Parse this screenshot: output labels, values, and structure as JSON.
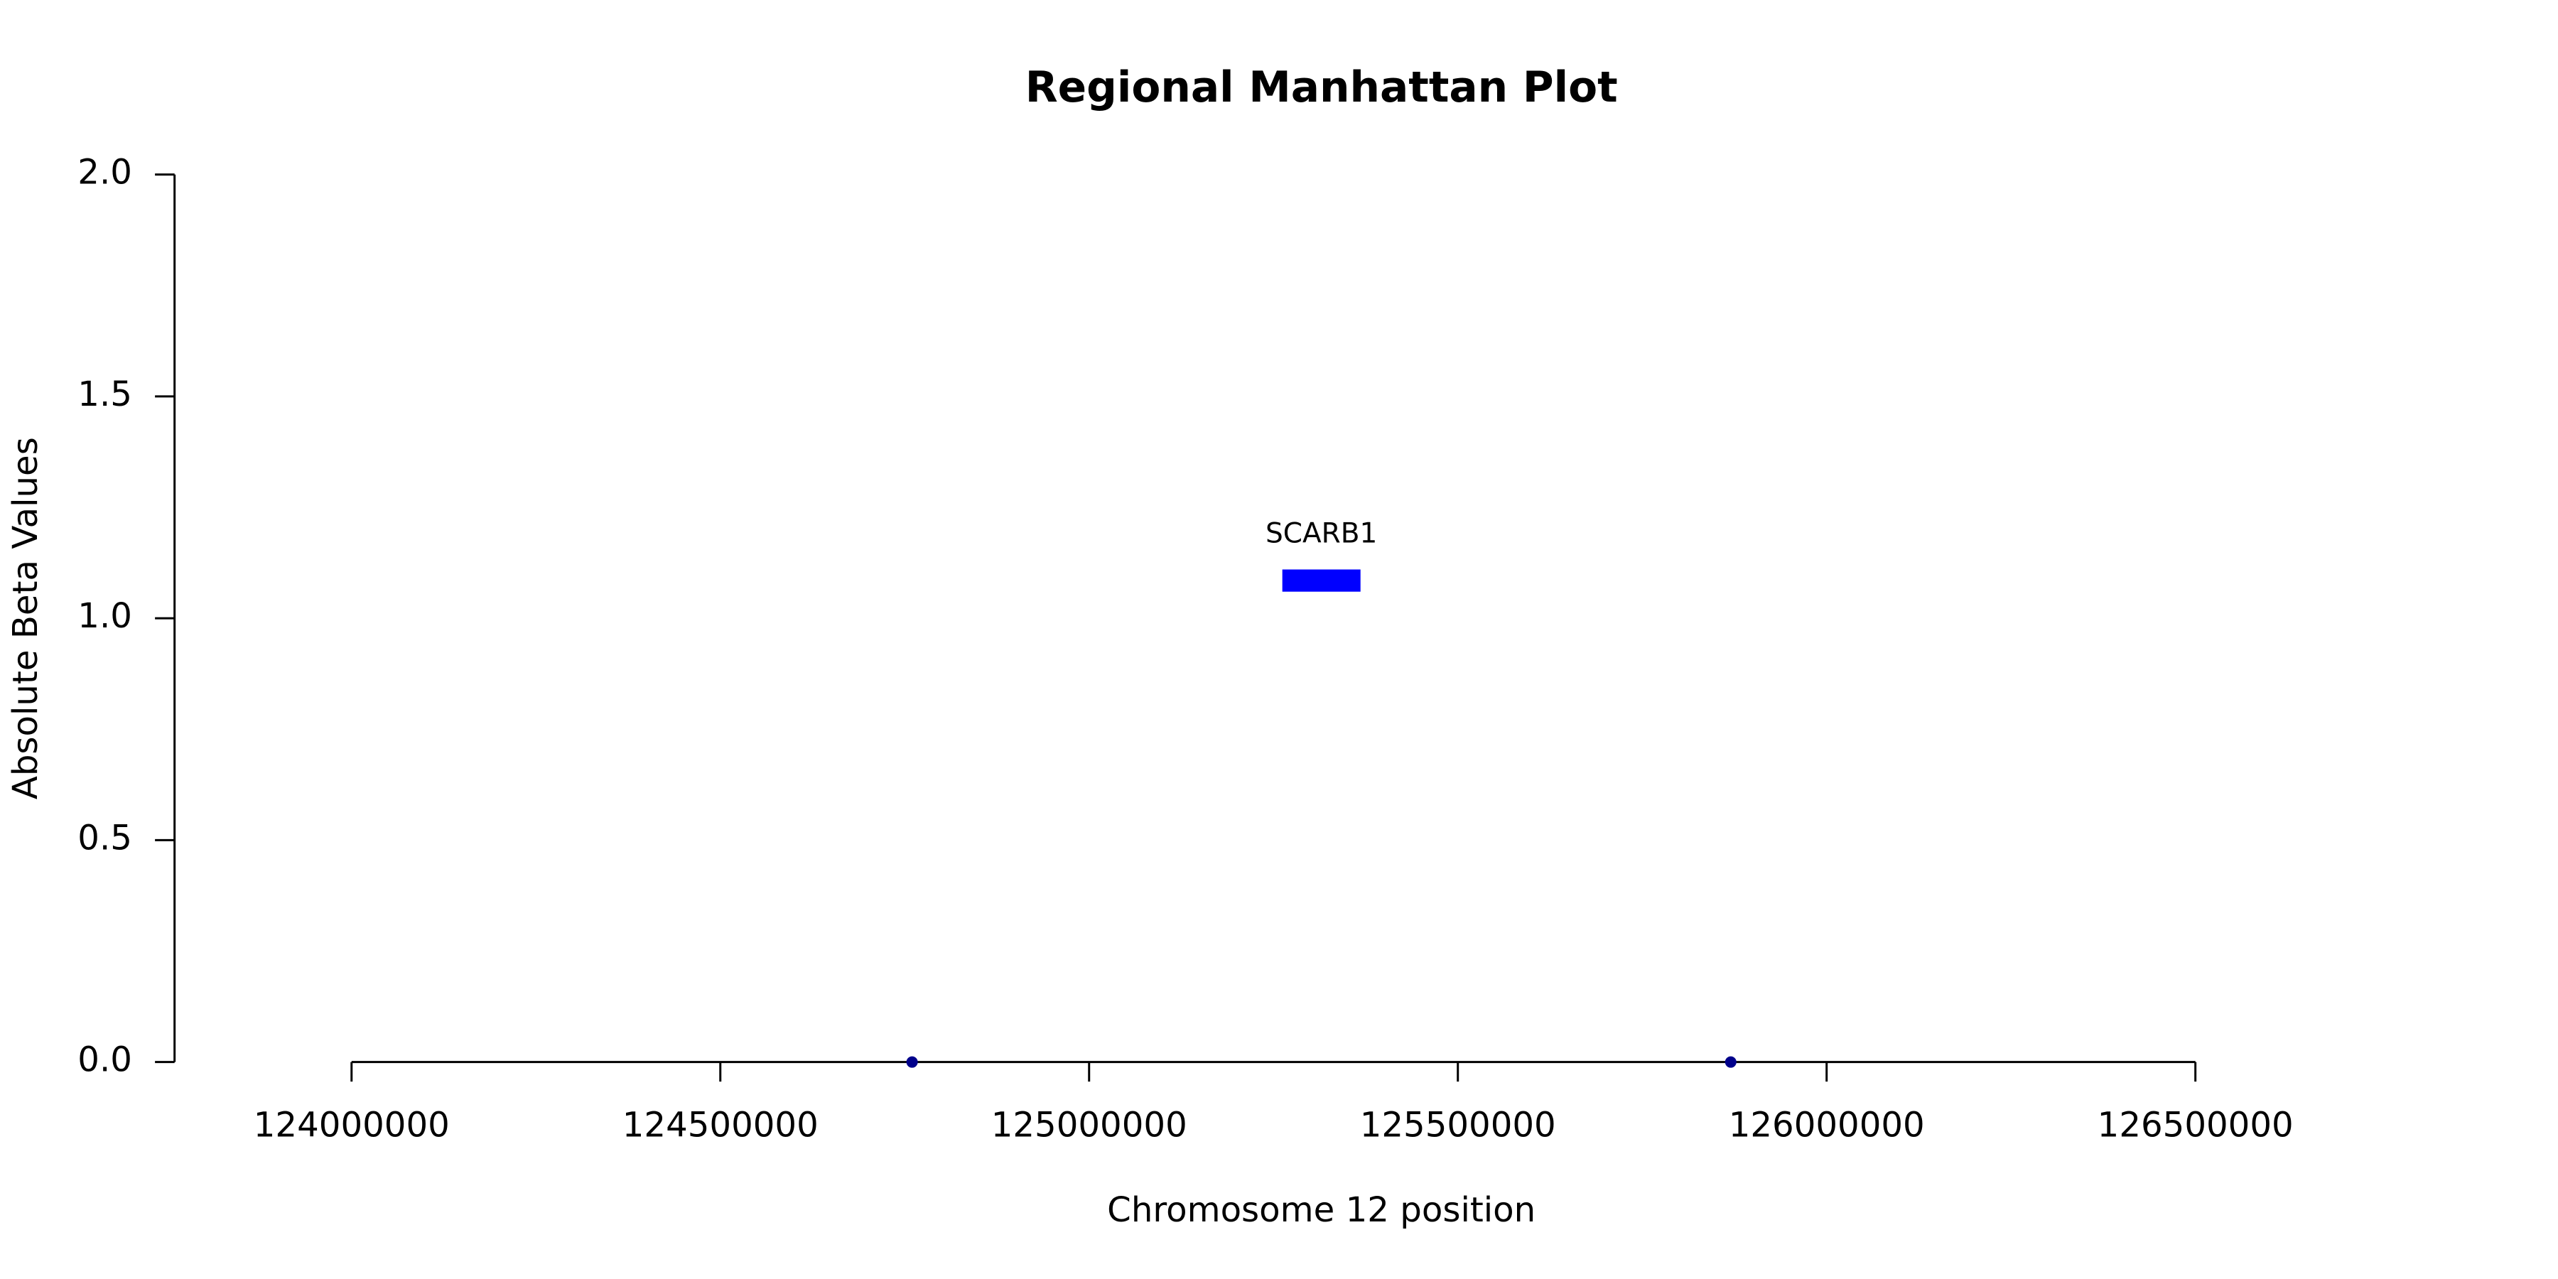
{
  "chart_data": {
    "type": "scatter",
    "title": "Regional Manhattan Plot",
    "x_label": "Chromosome 12 position",
    "y_label": "Absolute Beta Values",
    "x": [
      124760000,
      125870000
    ],
    "values": [
      0,
      0
    ],
    "color": "#00008b",
    "xlim": [
      123760000,
      126870000
    ],
    "ylim": [
      0,
      2
    ],
    "xticks": [
      124000000,
      124500000,
      125000000,
      125500000,
      126000000,
      126500000
    ],
    "yticks": [
      {
        "value": 0,
        "label": "0.0"
      },
      {
        "value": 0.5,
        "label": "0.5"
      },
      {
        "value": 1,
        "label": "1.0"
      },
      {
        "value": 1.5,
        "label": "1.5"
      },
      {
        "value": 2,
        "label": "2.0"
      }
    ],
    "genes": [
      {
        "name": "SCARB1",
        "start": 125262000,
        "end": 125368000,
        "y": [
          1.06,
          1.11
        ],
        "color": "#0000ff"
      }
    ],
    "grid": false
  }
}
